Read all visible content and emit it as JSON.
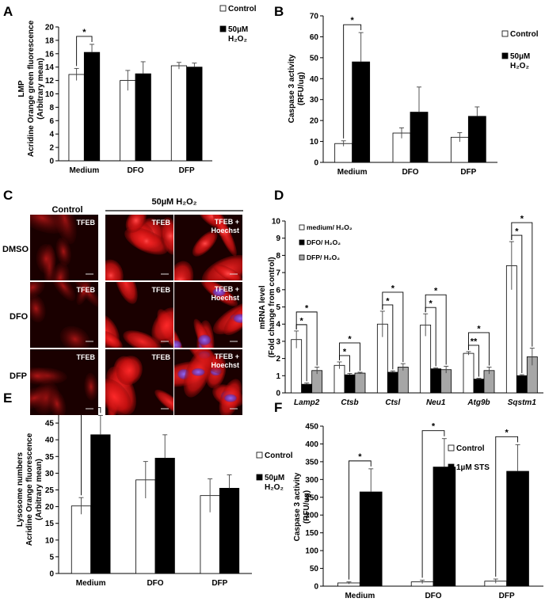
{
  "chart_data": [
    {
      "panel": "A",
      "type": "bar",
      "categories": [
        "Medium",
        "DFO",
        "DFP"
      ],
      "ylabel": [
        "LMP",
        "Acridine Orange green fluorescence",
        "(Arbitrary mean)"
      ],
      "ylim": [
        0,
        20
      ],
      "yticks": [
        0,
        2,
        4,
        6,
        8,
        10,
        12,
        14,
        16,
        18,
        20
      ],
      "series": [
        {
          "name": "Control",
          "fill": "#ffffff",
          "values": [
            12.9,
            12.0,
            14.2
          ],
          "errors": [
            0.9,
            1.5,
            0.5
          ]
        },
        {
          "name": "50µM H₂O₂",
          "fill": "#000000",
          "values": [
            16.2,
            13.0,
            14.0
          ],
          "errors": [
            1.2,
            1.8,
            0.6
          ]
        }
      ],
      "significance": [
        {
          "category": 0,
          "label": "*"
        }
      ]
    },
    {
      "panel": "B",
      "type": "bar",
      "categories": [
        "Medium",
        "DFO",
        "DFP"
      ],
      "ylabel": [
        "Caspase 3 activity",
        "(RFU/ug)"
      ],
      "ylim": [
        0,
        70
      ],
      "yticks": [
        0,
        10,
        20,
        30,
        40,
        50,
        60,
        70
      ],
      "series": [
        {
          "name": "Control",
          "fill": "#ffffff",
          "values": [
            9.0,
            14.0,
            12.0
          ],
          "errors": [
            1.3,
            2.5,
            2.2
          ]
        },
        {
          "name": "50µM H₂O₂",
          "fill": "#000000",
          "values": [
            48.0,
            24.0,
            22.0
          ],
          "errors": [
            14.0,
            12.0,
            4.5
          ]
        }
      ],
      "significance": [
        {
          "category": 0,
          "label": "*"
        }
      ]
    },
    {
      "panel": "D",
      "type": "bar",
      "categories": [
        "Lamp2",
        "Ctsb",
        "Ctsl",
        "Neu1",
        "Atg9b",
        "Sqstm1"
      ],
      "ylabel": [
        "mRNA level",
        "(Fold change from control)"
      ],
      "ylim": [
        0,
        10
      ],
      "yticks": [
        0,
        1,
        2,
        3,
        4,
        5,
        6,
        7,
        8,
        9,
        10
      ],
      "series": [
        {
          "name": "medium/ H₂O₂",
          "fill": "#ffffff",
          "values": [
            3.1,
            1.6,
            4.0,
            3.95,
            2.3,
            7.4
          ],
          "errors": [
            0.5,
            0.2,
            0.75,
            0.65,
            0.1,
            1.4
          ]
        },
        {
          "name": "DFO/ H₂O₂",
          "fill": "#000000",
          "values": [
            0.5,
            1.05,
            1.2,
            1.4,
            0.8,
            1.0
          ],
          "errors": [
            0.08,
            0.08,
            0.08,
            0.05,
            0.05,
            0.06
          ]
        },
        {
          "name": "DFP/ H₂O₂",
          "fill": "#a6a6a6",
          "values": [
            1.3,
            1.15,
            1.5,
            1.35,
            1.3,
            2.1
          ],
          "errors": [
            0.2,
            0.05,
            0.2,
            0.2,
            0.2,
            0.5
          ]
        }
      ],
      "significance": [
        {
          "category": 0,
          "labels": [
            "*",
            "*"
          ]
        },
        {
          "category": 1,
          "labels": [
            "*",
            "*"
          ]
        },
        {
          "category": 2,
          "labels": [
            "*",
            "*"
          ]
        },
        {
          "category": 3,
          "labels": [
            "*",
            "*"
          ]
        },
        {
          "category": 4,
          "labels": [
            "**",
            "*"
          ]
        },
        {
          "category": 5,
          "labels": [
            "*",
            "*"
          ]
        }
      ]
    },
    {
      "panel": "E",
      "type": "bar",
      "categories": [
        "Medium",
        "DFO",
        "DFP"
      ],
      "ylabel": [
        "Lysosome numbers",
        "Acridine Orange fluorescence",
        "(Arbitrary mean)"
      ],
      "ylim": [
        0,
        50
      ],
      "yticks": [
        0,
        5,
        10,
        15,
        20,
        25,
        30,
        35,
        40,
        45,
        50
      ],
      "series": [
        {
          "name": "Control",
          "fill": "#ffffff",
          "values": [
            20.2,
            28.0,
            23.3
          ],
          "errors": [
            2.5,
            5.5,
            5.0
          ]
        },
        {
          "name": "50µM H₂O₂",
          "fill": "#000000",
          "values": [
            41.5,
            34.5,
            25.5
          ],
          "errors": [
            5.8,
            7.0,
            4.0
          ]
        }
      ],
      "significance": [
        {
          "category": 0,
          "label": "*"
        }
      ]
    },
    {
      "panel": "F",
      "type": "bar",
      "categories": [
        "Medium",
        "DFO",
        "DFP"
      ],
      "ylabel": [
        "Caspase 3 activity",
        "(RFU/ug)"
      ],
      "ylim": [
        0,
        450
      ],
      "yticks": [
        0,
        50,
        100,
        150,
        200,
        250,
        300,
        350,
        400,
        450
      ],
      "series": [
        {
          "name": "Control",
          "fill": "#ffffff",
          "values": [
            9,
            12,
            14
          ],
          "errors": [
            3,
            5,
            6
          ]
        },
        {
          "name": "1µM STS",
          "fill": "#000000",
          "values": [
            265,
            335,
            323
          ],
          "errors": [
            65,
            80,
            75
          ]
        }
      ],
      "significance": [
        {
          "category": 0,
          "label": "*"
        },
        {
          "category": 1,
          "label": "*"
        },
        {
          "category": 2,
          "label": "*"
        }
      ]
    }
  ],
  "panel_c": {
    "letter": "C",
    "condition_header": "50µM  H₂O₂",
    "column_headers": [
      "Control"
    ],
    "row_labels": [
      "DMSO",
      "DFO",
      "DFP"
    ],
    "tile_captions": [
      [
        "TFEB",
        "TFEB",
        "TFEB + Hoechst"
      ],
      [
        "TFEB",
        "TFEB",
        "TFEB + Hoechst"
      ],
      [
        "TFEB",
        "TFEB",
        "TFEB + Hoechst"
      ]
    ]
  }
}
